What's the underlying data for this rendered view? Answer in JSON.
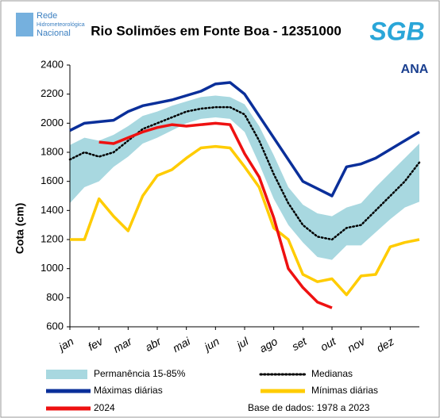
{
  "header_logos": {
    "network": [
      "Rede",
      "Hidrometeorológica",
      "Nacional"
    ],
    "sgb": "SGB",
    "ana": "ANA"
  },
  "chart_data": {
    "type": "line",
    "title": "Rio Solimões em Fonte Boa - 12351000",
    "y_label": "Cota (cm)",
    "note": "Base de dados: 1978 a 2023",
    "x": [
      0,
      0.5,
      1,
      1.5,
      2,
      2.5,
      3,
      3.5,
      4,
      4.5,
      5,
      5.5,
      6,
      6.5,
      7,
      7.5,
      8,
      8.5,
      9,
      9.5,
      10,
      10.5,
      11,
      11.5,
      12
    ],
    "xlim": [
      0,
      12
    ],
    "xticks": [
      {
        "value": 0,
        "label": "jan"
      },
      {
        "value": 1,
        "label": "fev"
      },
      {
        "value": 2,
        "label": "mar"
      },
      {
        "value": 3,
        "label": "abr"
      },
      {
        "value": 4,
        "label": "mai"
      },
      {
        "value": 5,
        "label": "jun"
      },
      {
        "value": 6,
        "label": "jul"
      },
      {
        "value": 7,
        "label": "ago"
      },
      {
        "value": 8,
        "label": "set"
      },
      {
        "value": 9,
        "label": "out"
      },
      {
        "value": 10,
        "label": "nov"
      },
      {
        "value": 11,
        "label": "dez"
      }
    ],
    "ylim": [
      600,
      2400
    ],
    "yticks": [
      600,
      800,
      1000,
      1200,
      1400,
      1600,
      1800,
      2000,
      2200,
      2400
    ],
    "band": {
      "name": "Permanência 15-85%",
      "color": "#a8d8e0",
      "upper": [
        1850,
        1900,
        1880,
        1920,
        1980,
        2050,
        2080,
        2120,
        2150,
        2180,
        2190,
        2180,
        2130,
        1980,
        1780,
        1560,
        1440,
        1380,
        1360,
        1420,
        1450,
        1560,
        1660,
        1760,
        1860
      ],
      "lower": [
        1450,
        1560,
        1600,
        1700,
        1770,
        1860,
        1900,
        1950,
        2000,
        2030,
        2040,
        2030,
        1940,
        1720,
        1480,
        1300,
        1180,
        1080,
        1060,
        1160,
        1160,
        1250,
        1340,
        1420,
        1460
      ]
    },
    "series": [
      {
        "name": "Medianas",
        "color": "#000000",
        "dash": "dotted",
        "values": [
          1750,
          1800,
          1770,
          1800,
          1880,
          1960,
          2000,
          2040,
          2080,
          2100,
          2110,
          2110,
          2060,
          1880,
          1650,
          1450,
          1300,
          1220,
          1200,
          1280,
          1300,
          1400,
          1500,
          1600,
          1730
        ]
      },
      {
        "name": "Máximas diárias",
        "color": "#0a2f9a",
        "values": [
          1950,
          2000,
          2010,
          2020,
          2080,
          2120,
          2140,
          2160,
          2190,
          2220,
          2270,
          2280,
          2200,
          2050,
          1900,
          1750,
          1600,
          1550,
          1500,
          1700,
          1720,
          1760,
          1820,
          1880,
          1940
        ]
      },
      {
        "name": "Mínimas diárias",
        "color": "#ffcc00",
        "values": [
          1200,
          1200,
          1480,
          1360,
          1260,
          1500,
          1640,
          1680,
          1760,
          1830,
          1840,
          1830,
          1700,
          1560,
          1280,
          1200,
          960,
          910,
          930,
          820,
          950,
          960,
          1150,
          1180,
          1200
        ]
      },
      {
        "name": "2024",
        "color": "#ee1111",
        "values": [
          null,
          null,
          1870,
          1860,
          1900,
          1940,
          1970,
          1990,
          1980,
          1990,
          2000,
          1990,
          1790,
          1630,
          1350,
          1000,
          870,
          770,
          730,
          null,
          null,
          null,
          null,
          null,
          null
        ]
      }
    ]
  }
}
